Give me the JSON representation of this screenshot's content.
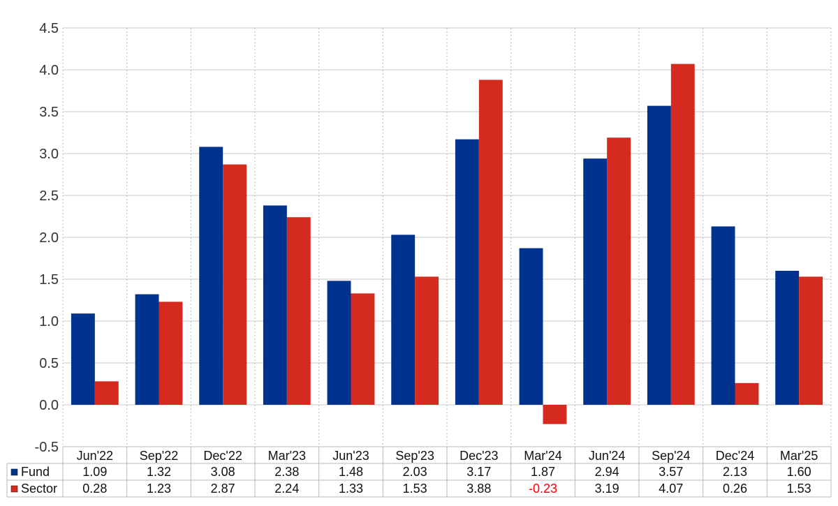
{
  "chart_data": {
    "type": "bar",
    "categories": [
      "Jun'22",
      "Sep'22",
      "Dec'22",
      "Mar'23",
      "Jun'23",
      "Sep'23",
      "Dec'23",
      "Mar'24",
      "Jun'24",
      "Sep'24",
      "Dec'24",
      "Mar'25"
    ],
    "series": [
      {
        "name": "Fund",
        "color": "#00338d",
        "values": [
          1.09,
          1.32,
          3.08,
          2.38,
          1.48,
          2.03,
          3.17,
          1.87,
          2.94,
          3.57,
          2.13,
          1.6
        ],
        "labels": [
          "1.09",
          "1.32",
          "3.08",
          "2.38",
          "1.48",
          "2.03",
          "3.17",
          "1.87",
          "2.94",
          "3.57",
          "2.13",
          "1.60"
        ]
      },
      {
        "name": "Sector",
        "color": "#d42a20",
        "values": [
          0.28,
          1.23,
          2.87,
          2.24,
          1.33,
          1.53,
          3.88,
          -0.23,
          3.19,
          4.07,
          0.26,
          1.53
        ],
        "labels": [
          "0.28",
          "1.23",
          "2.87",
          "2.24",
          "1.33",
          "1.53",
          "3.88",
          "-0.23",
          "3.19",
          "4.07",
          "0.26",
          "1.53"
        ]
      }
    ],
    "ylim": [
      -0.5,
      4.5
    ],
    "yticks": [
      "-0.5",
      "0.0",
      "0.5",
      "1.0",
      "1.5",
      "2.0",
      "2.5",
      "3.0",
      "3.5",
      "4.0",
      "4.5"
    ],
    "grid": true,
    "legend": "data-table-below",
    "negative_label_color": "#ff0000"
  }
}
